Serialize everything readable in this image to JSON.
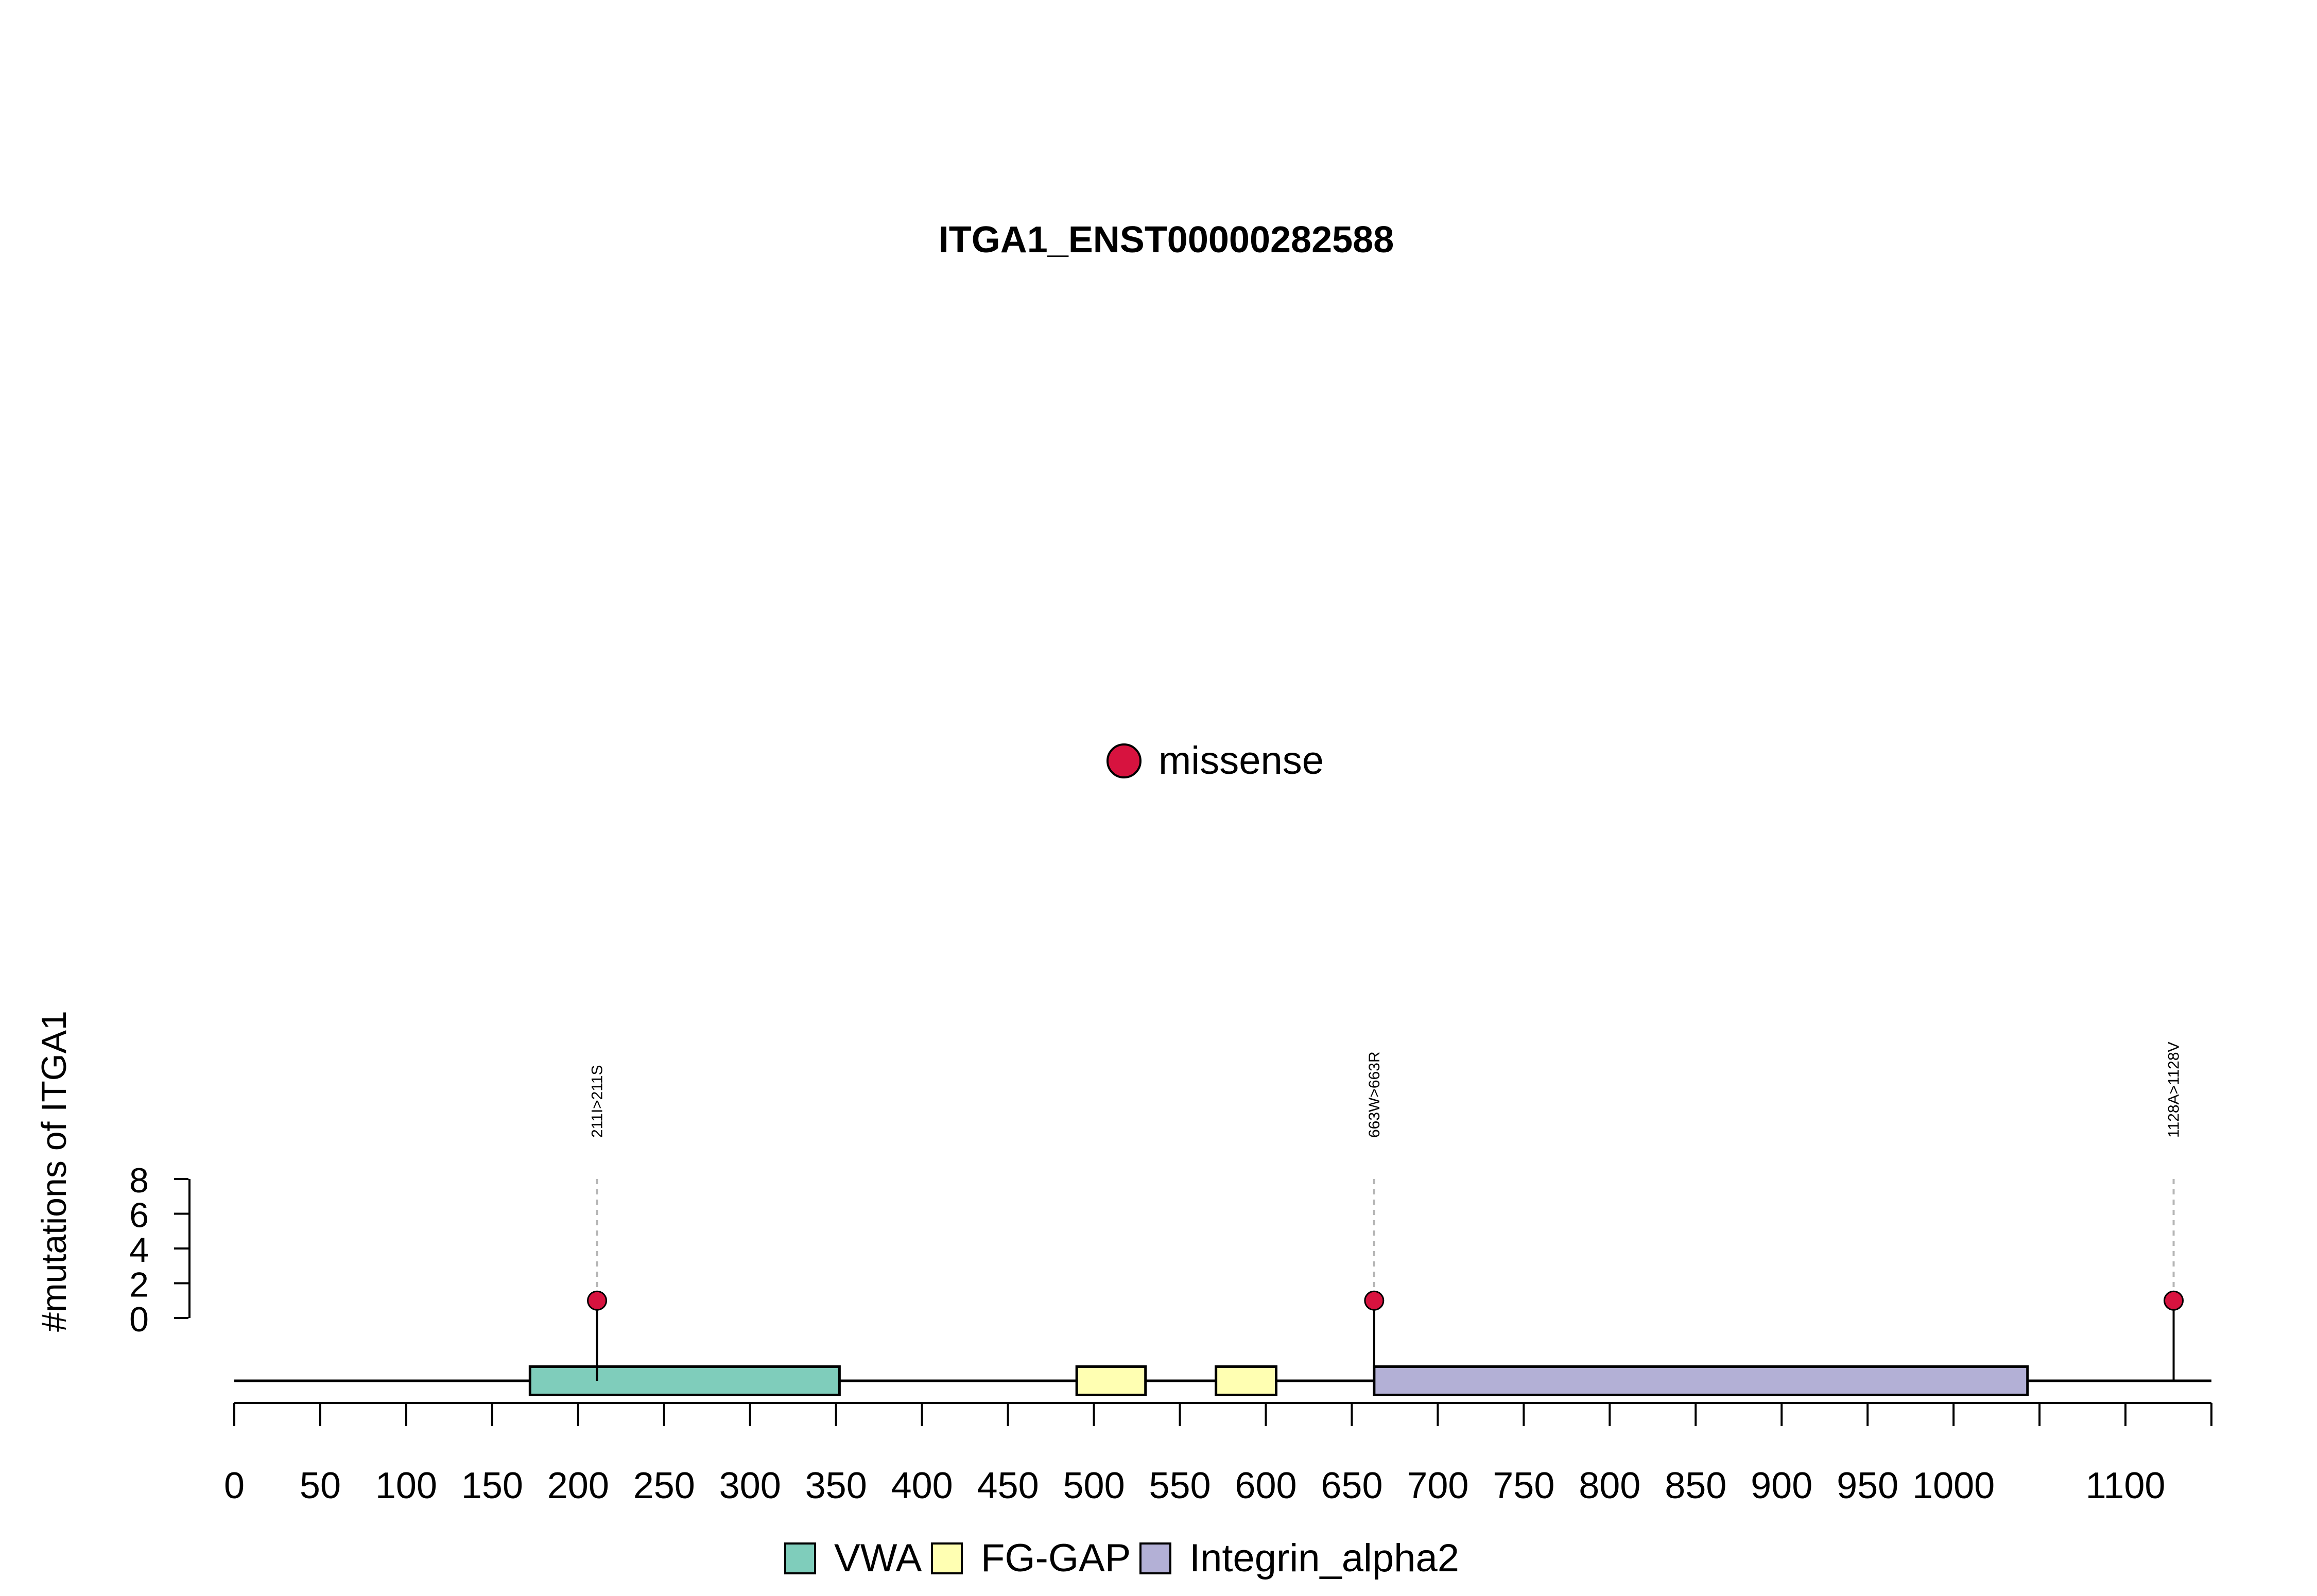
{
  "chart_data": {
    "type": "lollipop",
    "title": "ITGA1_ENST00000282588",
    "ylabel": "#mutations of ITGA1",
    "protein_length": 1150,
    "ylim": [
      0,
      8
    ],
    "y_ticks": [
      "0",
      "2",
      "4",
      "6",
      "8"
    ],
    "x_ticks": [
      {
        "value": 0,
        "label": "0"
      },
      {
        "value": 50,
        "label": "50"
      },
      {
        "value": 100,
        "label": "100"
      },
      {
        "value": 150,
        "label": "150"
      },
      {
        "value": 200,
        "label": "200"
      },
      {
        "value": 250,
        "label": "250"
      },
      {
        "value": 300,
        "label": "300"
      },
      {
        "value": 350,
        "label": "350"
      },
      {
        "value": 400,
        "label": "400"
      },
      {
        "value": 450,
        "label": "450"
      },
      {
        "value": 500,
        "label": "500"
      },
      {
        "value": 550,
        "label": "550"
      },
      {
        "value": 600,
        "label": "600"
      },
      {
        "value": 650,
        "label": "650"
      },
      {
        "value": 700,
        "label": "700"
      },
      {
        "value": 750,
        "label": "750"
      },
      {
        "value": 800,
        "label": "800"
      },
      {
        "value": 850,
        "label": "850"
      },
      {
        "value": 900,
        "label": "900"
      },
      {
        "value": 950,
        "label": "950"
      },
      {
        "value": 1000,
        "label": "1000"
      },
      {
        "value": 1050,
        "label": ""
      },
      {
        "value": 1100,
        "label": "1100"
      },
      {
        "value": 1150,
        "label": ""
      }
    ],
    "domains": [
      {
        "name": "VWA",
        "start": 172,
        "end": 352,
        "color": "#7fcdbb"
      },
      {
        "name": "FG-GAP",
        "start": 490,
        "end": 530,
        "color": "#ffffb2"
      },
      {
        "name": "FG-GAP",
        "start": 571,
        "end": 606,
        "color": "#ffffb2"
      },
      {
        "name": "Integrin_alpha2",
        "start": 663,
        "end": 1043,
        "color": "#b3b0d6"
      }
    ],
    "mutations": [
      {
        "position": 211,
        "count": 1,
        "label": "211I>211S",
        "type": "missense"
      },
      {
        "position": 663,
        "count": 1,
        "label": "663W>663R",
        "type": "missense"
      },
      {
        "position": 1128,
        "count": 1,
        "label": "1128A>1128V",
        "type": "missense"
      }
    ],
    "mutation_legend": [
      {
        "label": "missense",
        "color": "#d7133f"
      }
    ],
    "domain_legend": [
      {
        "label": "VWA",
        "color": "#7fcdbb"
      },
      {
        "label": "FG-GAP",
        "color": "#ffffb2"
      },
      {
        "label": "Integrin_alpha2",
        "color": "#b3b0d6"
      }
    ]
  }
}
